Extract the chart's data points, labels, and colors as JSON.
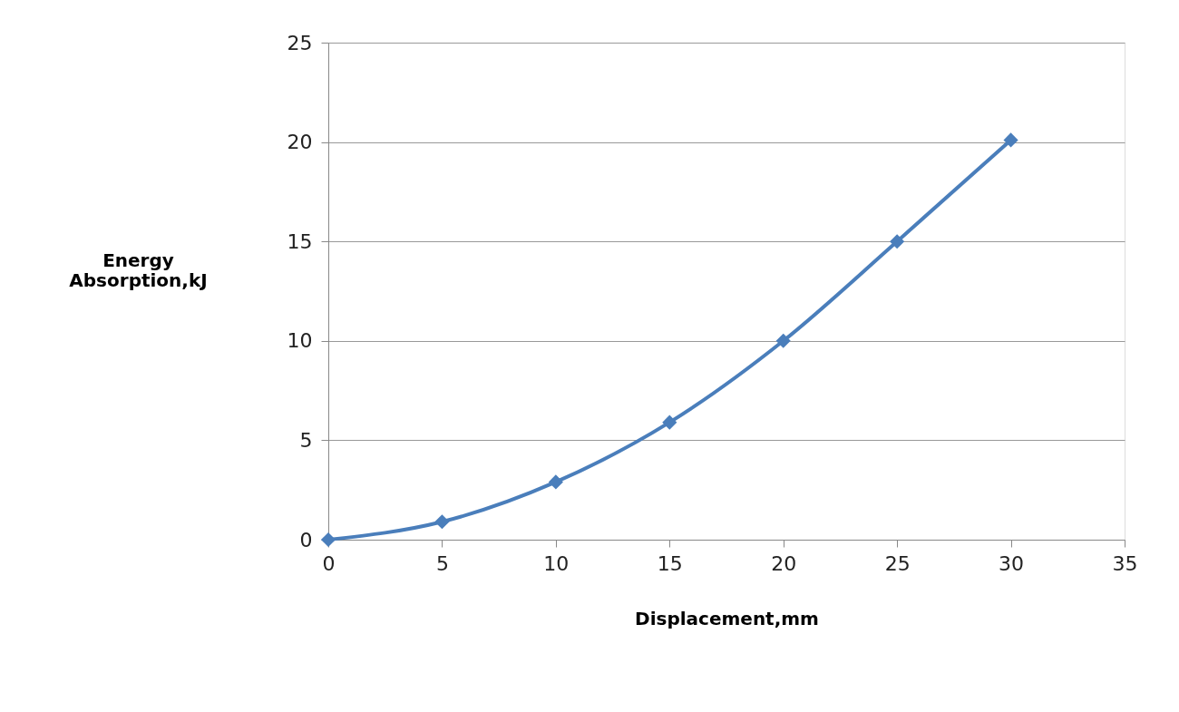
{
  "chart_data": {
    "type": "line",
    "xlabel": "Displacement,mm",
    "ylabel": "Energy Absorption,kJ",
    "x": [
      0,
      5,
      10,
      15,
      20,
      25,
      30
    ],
    "series": [
      {
        "color": "#4a7ebb",
        "values": [
          0,
          0.9,
          2.9,
          5.9,
          10.0,
          15.0,
          20.1
        ]
      }
    ],
    "xlim": [
      0,
      35
    ],
    "xticks": [
      0,
      5,
      10,
      15,
      20,
      25,
      30,
      35
    ],
    "ylim": [
      0,
      25
    ],
    "yticks": [
      0,
      5,
      10,
      15,
      20,
      25
    ],
    "grid": "y",
    "marker": "diamond",
    "line_style": "solid"
  }
}
